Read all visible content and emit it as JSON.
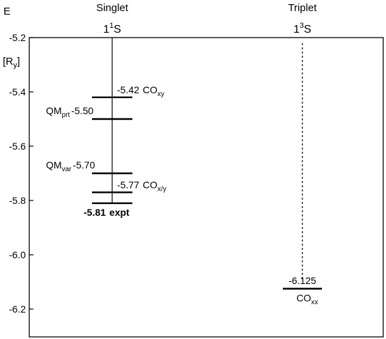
{
  "chart_data": {
    "type": "energy-level-diagram",
    "ylabel": "E",
    "yunit": "[Ry]",
    "ylim": [
      -6.3,
      -5.2
    ],
    "yticks": [
      {
        "value": -5.2,
        "label": "-5.2"
      },
      {
        "value": -5.4,
        "label": "-5.4"
      },
      {
        "value": -5.6,
        "label": "-5.6"
      },
      {
        "value": -5.8,
        "label": "-5.8"
      },
      {
        "value": -6.0,
        "label": "-6.0"
      },
      {
        "value": -6.2,
        "label": "-6.2"
      }
    ],
    "columns": [
      {
        "key": "singlet",
        "title": "Singlet",
        "state_prefix": "1",
        "state_sup": "1",
        "state_letter": "S",
        "line": "solid"
      },
      {
        "key": "triplet",
        "title": "Triplet",
        "state_prefix": "1",
        "state_sup": "3",
        "state_letter": "S",
        "line": "dashed"
      }
    ],
    "levels": [
      {
        "column": "singlet",
        "value": -5.42,
        "side": "right",
        "value_label": "-5.42",
        "method": "CO",
        "method_sub": "xy",
        "bold": false
      },
      {
        "column": "singlet",
        "value": -5.5,
        "side": "left",
        "value_label": "-5.50",
        "method": "QM",
        "method_sub": "prt",
        "bold": false
      },
      {
        "column": "singlet",
        "value": -5.7,
        "side": "left",
        "value_label": "-5.70",
        "method": "QM",
        "method_sub": "var",
        "bold": false
      },
      {
        "column": "singlet",
        "value": -5.77,
        "side": "right",
        "value_label": "-5.77",
        "method": "CO",
        "method_sub": "x/y",
        "bold": false
      },
      {
        "column": "singlet",
        "value": -5.81,
        "side": "below",
        "value_label": "-5.81",
        "method": "expt",
        "method_sub": "",
        "bold": true
      },
      {
        "column": "triplet",
        "value": -6.125,
        "side": "above-below",
        "value_label": "-6.125",
        "method": "CO",
        "method_sub": "xx",
        "bold": false
      }
    ]
  }
}
